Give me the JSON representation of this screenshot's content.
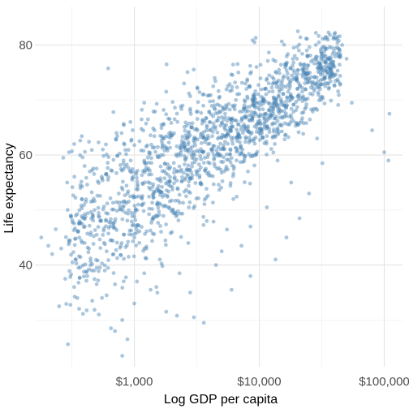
{
  "chart_data": {
    "type": "scatter",
    "title": "",
    "xlabel": "Log GDP per capita",
    "ylabel": "Life expectancy",
    "x_scale": "log10",
    "xlim": [
      160,
      140000
    ],
    "ylim": [
      21.5,
      87
    ],
    "x_ticks": [
      {
        "value": 1000,
        "label": "$1,000"
      },
      {
        "value": 10000,
        "label": "$10,000"
      },
      {
        "value": 100000,
        "label": "$100,000"
      }
    ],
    "x_minor_ticks": [
      316,
      3162,
      31623
    ],
    "y_ticks": [
      {
        "value": 40,
        "label": "40"
      },
      {
        "value": 60,
        "label": "60"
      },
      {
        "value": 80,
        "label": "80"
      }
    ],
    "y_minor_ticks": [
      30,
      50,
      70
    ],
    "grid": true,
    "legend": "none",
    "point_color": "#4682b4",
    "point_opacity": 0.45,
    "series": [
      {
        "points_estimated_sample": [
          [
            180,
            45
          ],
          [
            205,
            43.5
          ],
          [
            220,
            42
          ],
          [
            235,
            46.5
          ],
          [
            250,
            32.5
          ],
          [
            260,
            43
          ],
          [
            270,
            59.5
          ],
          [
            280,
            37.5
          ],
          [
            290,
            55
          ],
          [
            300,
            60.5
          ],
          [
            310,
            49
          ],
          [
            320,
            40.5
          ],
          [
            330,
            36
          ],
          [
            340,
            41
          ],
          [
            350,
            34
          ],
          [
            360,
            47.5
          ],
          [
            380,
            52
          ],
          [
            400,
            44
          ],
          [
            420,
            38
          ],
          [
            440,
            57
          ],
          [
            460,
            33.5
          ],
          [
            480,
            50
          ],
          [
            500,
            45.5
          ],
          [
            520,
            31
          ],
          [
            540,
            48
          ],
          [
            560,
            61
          ],
          [
            580,
            39
          ],
          [
            600,
            42.5
          ],
          [
            620,
            56
          ],
          [
            650,
            28.5
          ],
          [
            680,
            47
          ],
          [
            700,
            36.5
          ],
          [
            720,
            64
          ],
          [
            750,
            53
          ],
          [
            780,
            43.5
          ],
          [
            800,
            30
          ],
          [
            820,
            59
          ],
          [
            850,
            49.5
          ],
          [
            880,
            26.5
          ],
          [
            900,
            41.5
          ],
          [
            930,
            66
          ],
          [
            960,
            55.5
          ],
          [
            1000,
            45
          ],
          [
            1050,
            37
          ],
          [
            1100,
            62.5
          ],
          [
            1150,
            51
          ],
          [
            1200,
            69.5
          ],
          [
            1250,
            43
          ],
          [
            1300,
            57.5
          ],
          [
            1350,
            35.5
          ],
          [
            1400,
            48.5
          ],
          [
            1450,
            64.5
          ],
          [
            1500,
            53.5
          ],
          [
            1600,
            41
          ],
          [
            1700,
            60
          ],
          [
            1800,
            71.5
          ],
          [
            1900,
            50.5
          ],
          [
            2000,
            46
          ],
          [
            2100,
            66.5
          ],
          [
            2200,
            57
          ],
          [
            2300,
            38.5
          ],
          [
            2400,
            62
          ],
          [
            2500,
            73
          ],
          [
            2600,
            52.5
          ],
          [
            2700,
            44
          ],
          [
            2800,
            68
          ],
          [
            2900,
            59.5
          ],
          [
            3000,
            30.5
          ],
          [
            3200,
            64.5
          ],
          [
            3400,
            55
          ],
          [
            3600,
            71
          ],
          [
            3800,
            48
          ],
          [
            4000,
            66
          ],
          [
            4200,
            61
          ],
          [
            4400,
            74
          ],
          [
            4600,
            57.5
          ],
          [
            4800,
            69
          ],
          [
            5000,
            42.5
          ],
          [
            5300,
            63.5
          ],
          [
            5600,
            72.5
          ],
          [
            5900,
            66.5
          ],
          [
            6200,
            52
          ],
          [
            6500,
            70
          ],
          [
            6800,
            75
          ],
          [
            7100,
            61.5
          ],
          [
            7500,
            68.5
          ],
          [
            8000,
            73.5
          ],
          [
            8500,
            47
          ],
          [
            9000,
            71
          ],
          [
            9500,
            76
          ],
          [
            10000,
            69.5
          ],
          [
            10500,
            64
          ],
          [
            11000,
            72
          ],
          [
            12000,
            74.5
          ],
          [
            13000,
            70.5
          ],
          [
            14000,
            59
          ],
          [
            15000,
            73
          ],
          [
            16000,
            76.5
          ],
          [
            17000,
            71.5
          ],
          [
            18000,
            55
          ],
          [
            19000,
            74
          ],
          [
            20000,
            77.5
          ],
          [
            22000,
            75.5
          ],
          [
            24000,
            79
          ],
          [
            26000,
            77
          ],
          [
            28000,
            73
          ],
          [
            30000,
            80.5
          ],
          [
            32000,
            78
          ],
          [
            34000,
            81.5
          ],
          [
            36000,
            76
          ],
          [
            38000,
            79.5
          ],
          [
            40000,
            82
          ],
          [
            43000,
            78.5
          ],
          [
            46000,
            80
          ],
          [
            50000,
            77.5
          ],
          [
            55000,
            69.5
          ],
          [
            80000,
            64.5
          ],
          [
            100000,
            60.5
          ],
          [
            110000,
            67.5
          ],
          [
            108000,
            59
          ],
          [
            32000,
            58.5
          ],
          [
            29000,
            63
          ],
          [
            25000,
            53
          ],
          [
            21000,
            48.5
          ],
          [
            16500,
            45
          ],
          [
            13500,
            41
          ],
          [
            11500,
            50.5
          ],
          [
            8500,
            38
          ],
          [
            7200,
            43.5
          ],
          [
            6000,
            35.5
          ],
          [
            4500,
            40
          ],
          [
            3600,
            29.5
          ],
          [
            2800,
            35
          ],
          [
            1800,
            31.5
          ],
          [
            1500,
            36
          ],
          [
            1200,
            38.5
          ],
          [
            1000,
            33
          ],
          [
            800,
            23.5
          ],
          [
            700,
            28
          ],
          [
            600,
            34.5
          ],
          [
            500,
            39.5
          ],
          [
            450,
            51.5
          ],
          [
            400,
            58
          ],
          [
            370,
            54
          ],
          [
            330,
            62
          ],
          [
            300,
            44.5
          ]
        ]
      }
    ]
  }
}
